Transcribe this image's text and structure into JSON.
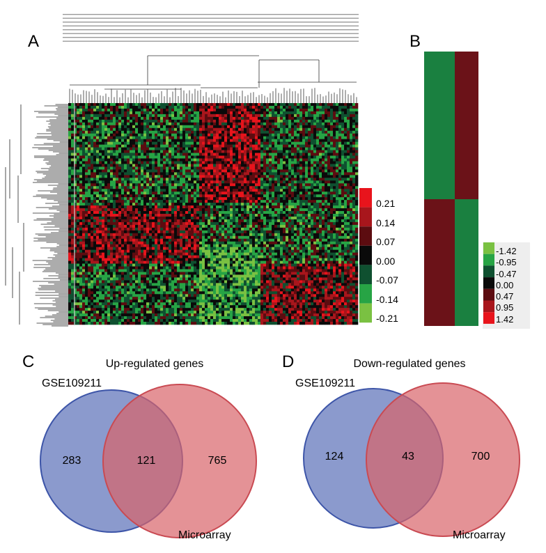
{
  "panels": {
    "a": "A",
    "b": "B",
    "c": "C",
    "d": "D"
  },
  "colors": {
    "heat_red": "#e8141c",
    "heat_darkred": "#6b0e16",
    "heat_black": "#0a0a0a",
    "heat_darkgreen": "#0d4a2a",
    "heat_green": "#1f8a3c",
    "heat_lightgreen": "#7ac142",
    "venn_blue": "#5a6fb8",
    "venn_red": "#d9646a"
  },
  "chart_data": [
    {
      "type": "heatmap",
      "panel": "A",
      "colorbar": {
        "labels": [
          "0.21",
          "0.14",
          "0.07",
          "0.00",
          "-0.07",
          "-0.14",
          "-0.21"
        ],
        "colors": [
          "#e8141c",
          "#a8161c",
          "#5c0c10",
          "#0a0a0a",
          "#0f5030",
          "#27a445",
          "#7ac142"
        ]
      }
    },
    {
      "type": "heatmap",
      "panel": "B",
      "cells": [
        [
          "green",
          "darkred"
        ],
        [
          "darkred",
          "green"
        ]
      ],
      "colorbar": {
        "labels": [
          "-1.42",
          "-0.95",
          "-0.47",
          "0.00",
          "0.47",
          "0.95",
          "1.42"
        ],
        "colors": [
          "#7ac142",
          "#27a445",
          "#0f5030",
          "#0a0a0a",
          "#5c0c10",
          "#a8161c",
          "#e8141c"
        ]
      }
    },
    {
      "type": "venn",
      "panel": "C",
      "title": "Up-regulated genes",
      "sets": [
        "GSE109211",
        "Microarray"
      ],
      "values": {
        "only_left": 283,
        "both": 121,
        "only_right": 765
      }
    },
    {
      "type": "venn",
      "panel": "D",
      "title": "Down-regulated genes",
      "sets": [
        "GSE109211",
        "Microarray"
      ],
      "values": {
        "only_left": 124,
        "both": 43,
        "only_right": 700
      }
    }
  ]
}
